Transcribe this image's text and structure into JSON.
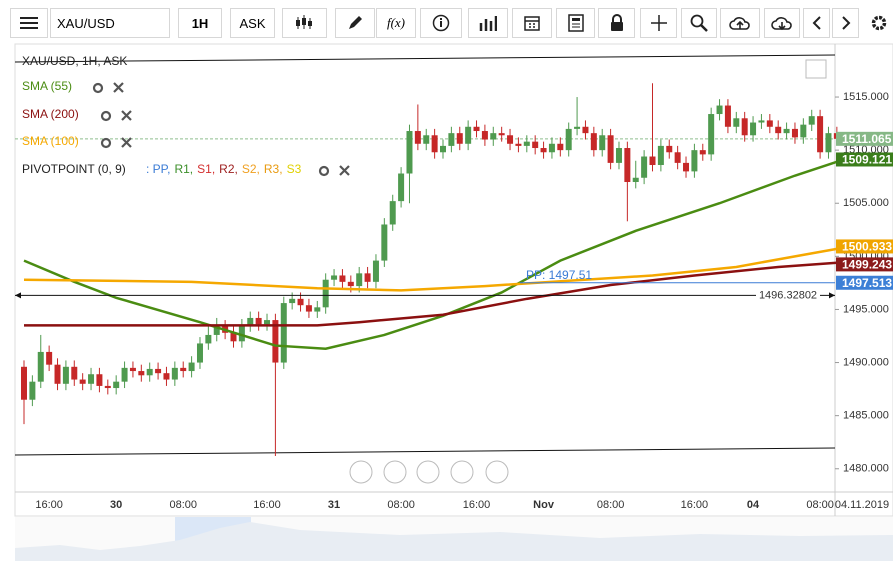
{
  "toolbar": {
    "symbol": "XAU/USD",
    "interval": "1H",
    "price_side": "ASK",
    "function_label": "f(x)"
  },
  "chart_data": {
    "type": "candlestick",
    "title": "XAU/USD, 1H, ASK",
    "categories": [
      null,
      null,
      null,
      "16:00",
      null,
      null,
      null,
      null,
      null,
      null,
      null,
      "30",
      null,
      null,
      null,
      null,
      null,
      null,
      null,
      "08:00",
      null,
      null,
      null,
      null,
      null,
      null,
      null,
      null,
      null,
      "16:00",
      null,
      null,
      null,
      null,
      null,
      null,
      null,
      "31",
      null,
      null,
      null,
      null,
      null,
      null,
      null,
      "08:00",
      null,
      null,
      null,
      null,
      null,
      null,
      null,
      null,
      "16:00",
      null,
      null,
      null,
      null,
      null,
      null,
      null,
      "Nov",
      null,
      null,
      null,
      null,
      null,
      null,
      null,
      "08:00",
      null,
      null,
      null,
      null,
      null,
      null,
      null,
      null,
      null,
      "16:00",
      null,
      null,
      null,
      null,
      null,
      null,
      "04",
      null,
      null,
      null,
      null,
      null,
      null,
      null,
      "08:00",
      null,
      null
    ],
    "open": [
      1489.6,
      1486.5,
      1488.2,
      1491.0,
      1489.8,
      1488.0,
      1489.6,
      1488.4,
      1488.0,
      1488.9,
      1487.8,
      1487.6,
      1488.2,
      1489.5,
      1489.2,
      1488.8,
      1489.4,
      1489.0,
      1488.4,
      1489.5,
      1489.2,
      1490.0,
      1491.8,
      1492.6,
      1493.4,
      1492.8,
      1492.0,
      1493.5,
      1494.2,
      1493.6,
      1494.0,
      1490.0,
      1495.6,
      1496.0,
      1495.4,
      1494.8,
      1495.2,
      1497.8,
      1498.2,
      1497.6,
      1497.2,
      1498.4,
      1497.6,
      1499.6,
      1503.0,
      1505.2,
      1507.8,
      1511.8,
      1510.6,
      1511.4,
      1509.8,
      1510.4,
      1511.6,
      1510.6,
      1512.2,
      1511.8,
      1511.0,
      1511.6,
      1511.4,
      1510.6,
      1510.4,
      1510.8,
      1510.2,
      1509.8,
      1510.6,
      1510.0,
      1512.0,
      1512.2,
      1511.6,
      1510.0,
      1511.4,
      1508.8,
      1510.2,
      1507.0,
      1507.4,
      1509.4,
      1508.6,
      1510.4,
      1509.8,
      1508.8,
      1508.0,
      1510.0,
      1509.6,
      1513.4,
      1514.2,
      1512.2,
      1513.0,
      1511.4,
      1512.6,
      1512.8,
      1512.2,
      1511.6,
      1512.0,
      1511.2,
      1512.4,
      1513.2,
      1509.8,
      1511.6
    ],
    "high": [
      1490.2,
      1488.8,
      1492.6,
      1491.6,
      1490.4,
      1490.2,
      1490.2,
      1489.0,
      1489.5,
      1489.5,
      1488.4,
      1488.8,
      1490.1,
      1490.1,
      1489.8,
      1490.0,
      1490.0,
      1489.6,
      1490.1,
      1490.1,
      1490.6,
      1492.4,
      1493.4,
      1494.2,
      1494.0,
      1493.4,
      1494.1,
      1494.8,
      1494.8,
      1494.6,
      1494.6,
      1496.2,
      1496.6,
      1496.6,
      1496.0,
      1495.8,
      1498.4,
      1498.8,
      1498.8,
      1498.2,
      1499.0,
      1499.0,
      1500.2,
      1503.6,
      1505.8,
      1508.4,
      1512.4,
      1514.3,
      1512.0,
      1512.0,
      1511.0,
      1512.2,
      1512.2,
      1512.8,
      1512.8,
      1512.4,
      1512.2,
      1512.2,
      1512.0,
      1511.2,
      1511.4,
      1511.4,
      1510.8,
      1511.2,
      1511.2,
      1512.6,
      1515.0,
      1512.8,
      1512.2,
      1512.0,
      1512.0,
      1510.8,
      1510.8,
      1509.0,
      1510.0,
      1516.3,
      1511.0,
      1511.0,
      1510.4,
      1509.4,
      1510.6,
      1510.6,
      1514.0,
      1514.8,
      1514.8,
      1513.6,
      1513.6,
      1513.2,
      1513.4,
      1513.4,
      1512.8,
      1512.6,
      1512.6,
      1513.0,
      1513.8,
      1513.8,
      1512.2,
      1512.2
    ],
    "low": [
      1484.2,
      1485.9,
      1487.6,
      1489.2,
      1487.4,
      1487.4,
      1487.8,
      1487.4,
      1487.4,
      1487.2,
      1487.0,
      1487.0,
      1487.6,
      1488.6,
      1488.2,
      1488.2,
      1488.4,
      1487.8,
      1487.8,
      1488.6,
      1488.6,
      1489.4,
      1491.2,
      1492.0,
      1492.2,
      1491.4,
      1491.4,
      1492.9,
      1493.0,
      1493.0,
      1481.2,
      1489.4,
      1495.0,
      1494.8,
      1494.2,
      1494.2,
      1494.6,
      1497.2,
      1497.0,
      1496.6,
      1496.6,
      1497.0,
      1497.0,
      1499.0,
      1502.4,
      1504.6,
      1505.0,
      1510.0,
      1510.0,
      1509.2,
      1509.2,
      1509.8,
      1510.0,
      1510.0,
      1511.2,
      1510.4,
      1510.4,
      1510.8,
      1510.0,
      1509.8,
      1509.8,
      1509.6,
      1509.2,
      1509.2,
      1509.4,
      1509.4,
      1511.4,
      1511.0,
      1509.4,
      1509.4,
      1508.2,
      1508.2,
      1503.3,
      1506.4,
      1506.8,
      1508.0,
      1508.0,
      1509.2,
      1508.2,
      1507.4,
      1507.4,
      1509.0,
      1509.0,
      1512.8,
      1511.6,
      1511.6,
      1510.8,
      1510.8,
      1512.0,
      1511.6,
      1511.0,
      1511.0,
      1510.6,
      1510.6,
      1511.8,
      1509.2,
      1509.2,
      1510.5
    ],
    "close": [
      1486.5,
      1488.2,
      1491.0,
      1489.8,
      1488.0,
      1489.6,
      1488.4,
      1488.0,
      1488.9,
      1487.8,
      1487.6,
      1488.2,
      1489.5,
      1489.2,
      1488.8,
      1489.4,
      1489.0,
      1488.4,
      1489.5,
      1489.2,
      1490.0,
      1491.8,
      1492.6,
      1493.4,
      1492.8,
      1492.0,
      1493.5,
      1494.2,
      1493.6,
      1494.0,
      1490.0,
      1495.6,
      1496.0,
      1495.4,
      1494.8,
      1495.2,
      1497.8,
      1498.2,
      1497.6,
      1497.2,
      1498.4,
      1497.6,
      1499.6,
      1503.0,
      1505.2,
      1507.8,
      1511.8,
      1510.6,
      1511.4,
      1509.8,
      1510.4,
      1511.6,
      1510.6,
      1512.2,
      1511.8,
      1511.0,
      1511.6,
      1511.4,
      1510.6,
      1510.4,
      1510.8,
      1510.2,
      1509.8,
      1510.6,
      1510.0,
      1512.0,
      1512.2,
      1511.6,
      1510.0,
      1511.4,
      1508.8,
      1510.2,
      1507.0,
      1507.4,
      1509.4,
      1508.6,
      1510.4,
      1509.8,
      1508.8,
      1508.0,
      1510.0,
      1509.6,
      1513.4,
      1514.2,
      1512.2,
      1513.0,
      1511.4,
      1512.6,
      1512.8,
      1512.2,
      1511.6,
      1512.0,
      1511.2,
      1512.4,
      1513.2,
      1509.8,
      1511.6,
      1511.065
    ],
    "up_color": "#4f9a4f",
    "down_color": "#c62828",
    "indicators": [
      {
        "name": "SMA (55)",
        "color": "#4a8c12",
        "x": [
          0,
          6,
          11,
          21,
          30,
          36,
          43,
          50,
          57,
          64,
          73,
          83,
          92,
          97
        ],
        "values": [
          1499.6,
          1497.6,
          1496.1,
          1493.8,
          1491.6,
          1491.3,
          1492.6,
          1494.4,
          1496.6,
          1499.6,
          1502.4,
          1505.0,
          1507.6,
          1508.9
        ]
      },
      {
        "name": "SMA (200)",
        "color": "#8b1010",
        "x": [
          0,
          20,
          35,
          40,
          50,
          60,
          70,
          80,
          90,
          97
        ],
        "values": [
          1493.5,
          1493.5,
          1493.5,
          1493.8,
          1494.5,
          1496.0,
          1497.3,
          1498.2,
          1499.0,
          1499.4
        ]
      },
      {
        "name": "SMA (100)",
        "color": "#f5a800",
        "x": [
          0,
          20,
          35,
          45,
          55,
          65,
          75,
          85,
          92,
          97
        ],
        "values": [
          1497.8,
          1497.6,
          1497.0,
          1496.8,
          1497.2,
          1497.7,
          1498.2,
          1499.0,
          1500.0,
          1500.7
        ]
      }
    ],
    "pivot": {
      "name": "PIVOTPOINT (0, 9)",
      "levels": [
        {
          "text": ": PP,",
          "color": "#3a7bd5"
        },
        {
          "text": "R1,",
          "color": "#3c8f2a"
        },
        {
          "text": "S1,",
          "color": "#d32f2f"
        },
        {
          "text": "R2,",
          "color": "#9c1c1c"
        },
        {
          "text": "S2,",
          "color": "#f0a020"
        },
        {
          "text": "R3,",
          "color": "#e89a10"
        },
        {
          "text": "S3",
          "color": "#e0d000"
        }
      ],
      "label": "PP: 1497.51",
      "value": 1497.513,
      "color": "#3a7bd5"
    },
    "crosshair": {
      "value": 1496.32802,
      "label": "1496.32802"
    },
    "last_price": 1511.065,
    "price_tags": [
      {
        "value": 1511.065,
        "label": "1511.065",
        "color": "#86b886"
      },
      {
        "value": 1509.121,
        "label": "1509.121",
        "color": "#3a7d1a"
      },
      {
        "value": 1500.933,
        "label": "1500.933",
        "color": "#f0a500"
      },
      {
        "value": 1499.243,
        "label": "1499.243",
        "color": "#8b1a1a"
      },
      {
        "value": 1497.513,
        "label": "1497.513",
        "color": "#3c7fd6"
      }
    ],
    "ylim": [
      1478,
      1519.9
    ],
    "yticks": [
      {
        "value": 1480,
        "label": "1480.000"
      },
      {
        "value": 1485,
        "label": "1485.000"
      },
      {
        "value": 1490,
        "label": "1490.000"
      },
      {
        "value": 1495,
        "label": "1495.000"
      },
      {
        "value": 1500,
        "label": "1500.000"
      },
      {
        "value": 1505,
        "label": "1505.000"
      },
      {
        "value": 1510,
        "label": "1510.000"
      },
      {
        "value": 1515,
        "label": "1515.000"
      }
    ],
    "date_label": "04.11.2019"
  }
}
